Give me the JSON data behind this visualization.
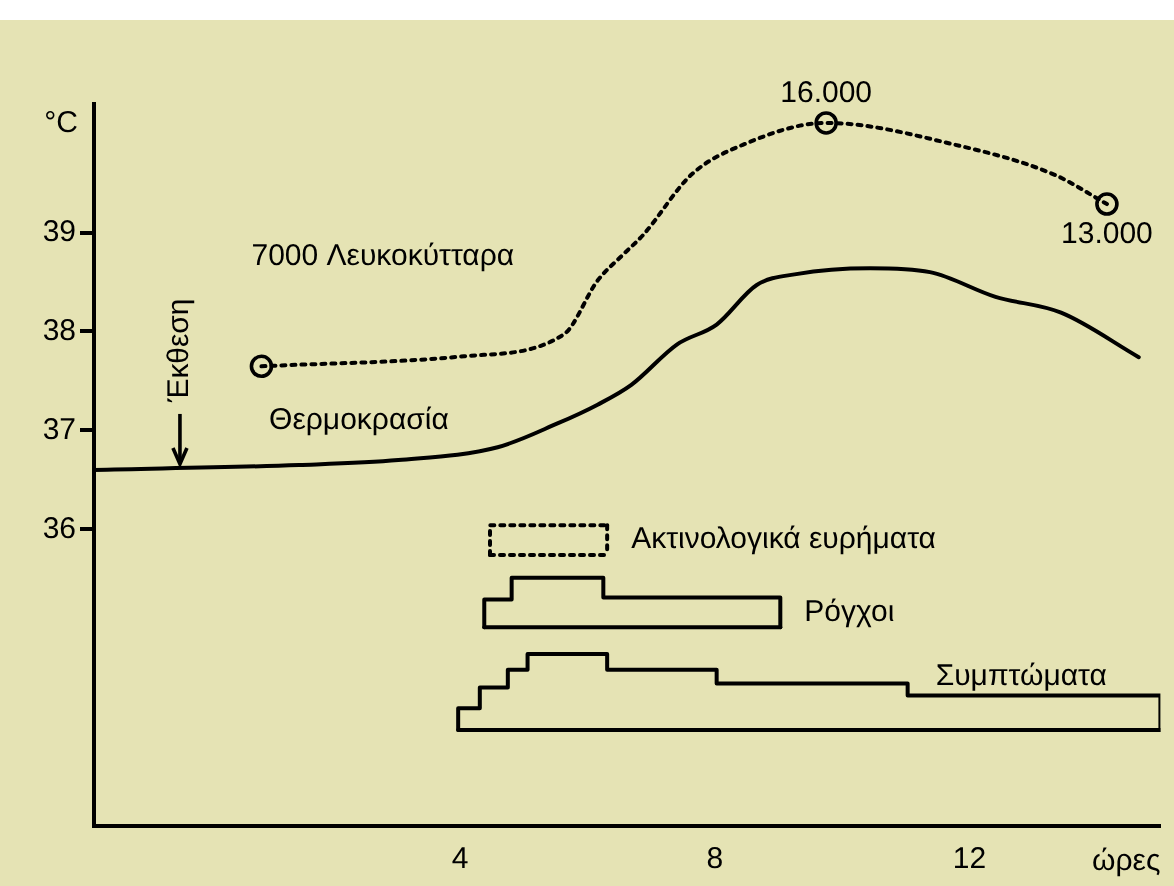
{
  "chart_data": {
    "type": "line",
    "xlabel": "ώρες",
    "ylabel": "°C",
    "xlim": [
      -1.75,
      15
    ],
    "xticks": [
      4,
      8,
      12
    ],
    "ylim": [
      33,
      40.3
    ],
    "yticks": [
      36,
      37,
      38,
      39
    ],
    "y2lim": [
      -10000,
      16700
    ],
    "grid": false,
    "legend": false,
    "series": [
      {
        "name": "Θερμοκρασία",
        "color": "#000000",
        "line_style": "solid",
        "marker": "none",
        "x": [
          -1.75,
          1.47,
          3.03,
          4.59,
          5.53,
          6.16,
          6.69,
          7.41,
          8.03,
          8.66,
          9.28,
          10.44,
          11.38,
          12.41,
          13.44,
          14.66
        ],
        "values": [
          36.6,
          36.65,
          36.7,
          36.83,
          37.07,
          37.26,
          37.46,
          37.87,
          38.07,
          38.47,
          38.58,
          38.64,
          38.6,
          38.35,
          38.19,
          37.74
        ]
      },
      {
        "name": "Λευκοκύτταρα",
        "color": "#000000",
        "line_style": "dotted",
        "marker": "none",
        "axis": "y2",
        "x": [
          0.88,
          4.06,
          5.63,
          6.16,
          6.56,
          6.88,
          7.63,
          8.44,
          9.75,
          11.78,
          13.34,
          14.16
        ],
        "values": [
          7000,
          7370,
          8180,
          10170,
          11130,
          11870,
          14080,
          15190,
          16000,
          15190,
          14080,
          13000
        ]
      },
      {
        "type": "scatter",
        "color": "#000000",
        "marker": "circle",
        "axis": "y2",
        "x": [
          0.88,
          9.75,
          14.16
        ],
        "values": [
          7000,
          16000,
          13000
        ],
        "value_labels": [
          "7000",
          "16.000",
          "13.000"
        ]
      },
      {
        "name": "Ακτινολογικά ευρήματα",
        "type": "step",
        "color": "#000000",
        "line_style": "dotted",
        "marker": "none",
        "x": [
          4.47,
          4.47,
          6.31,
          6.31
        ],
        "values": [
          35.74,
          36.04,
          36.04,
          35.74
        ]
      },
      {
        "type": "line",
        "color": "#000000",
        "line_style": "dotted",
        "marker": "none",
        "x": [
          4.47,
          6.31
        ],
        "values": [
          35.74,
          35.74
        ]
      },
      {
        "name": "Ρόγχοι",
        "type": "step",
        "color": "#000000",
        "line_style": "solid",
        "marker": "none",
        "x": [
          4.38,
          4.38,
          4.81,
          6.25,
          9.03,
          9.03
        ],
        "values": [
          35.01,
          35.29,
          35.51,
          35.31,
          35.31,
          35.01
        ]
      },
      {
        "type": "line",
        "color": "#000000",
        "line_style": "solid",
        "marker": "none",
        "x": [
          4.38,
          9.03
        ],
        "values": [
          35.01,
          35.01
        ]
      },
      {
        "name": "Συμπτώματα",
        "type": "step",
        "color": "#000000",
        "line_style": "solid",
        "marker": "none",
        "x": [
          3.97,
          3.97,
          4.31,
          4.75,
          5.06,
          6.31,
          8.03,
          11.03,
          15,
          15
        ],
        "values": [
          33.97,
          34.19,
          34.4,
          34.58,
          34.74,
          34.58,
          34.44,
          34.32,
          34.32,
          33.97
        ]
      },
      {
        "type": "line",
        "color": "#000000",
        "line_style": "solid",
        "marker": "none",
        "x": [
          3.97,
          15
        ],
        "values": [
          33.97,
          33.97
        ]
      }
    ],
    "annotations": [
      {
        "text": "Έκθεση",
        "x": -0.4,
        "y": 36.6
      }
    ]
  }
}
